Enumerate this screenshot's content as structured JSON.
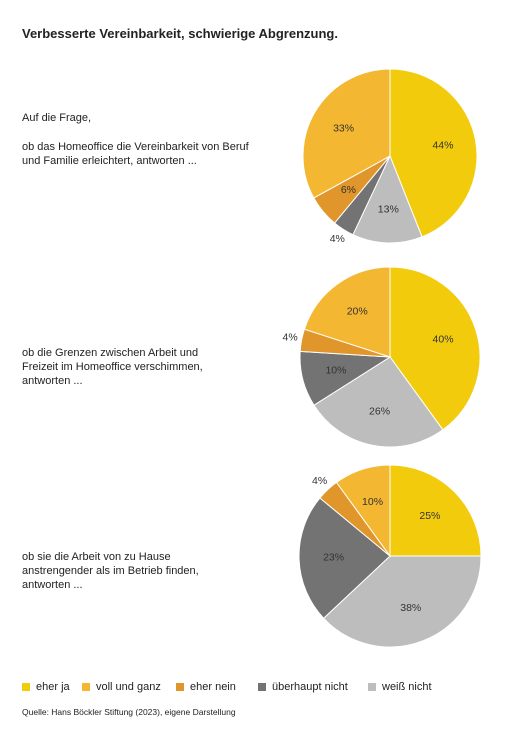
{
  "title": "Verbesserte Vereinbarkeit, schwierige Abgrenzung.",
  "intro": "Auf die Frage,",
  "source": "Quelle: Hans Böckler Stiftung (2023), eigene Darstellung",
  "chart_data": [
    {
      "type": "pie",
      "subtitle": "ob das Homeoffice die Vereinbarkeit von Beruf und Familie erleichtert, antworten ...",
      "categories": [
        "eher ja",
        "voll und ganz",
        "eher nein",
        "überhaupt nicht",
        "weiß nicht"
      ],
      "colors": [
        "#f2cc0c",
        "#f4b731",
        "#e0962a",
        "#737373",
        "#bdbdbd"
      ],
      "values": [
        44,
        33,
        6,
        4,
        13
      ],
      "value_labels": [
        "44%",
        "33%",
        "6%",
        "4%",
        "13%"
      ]
    },
    {
      "type": "pie",
      "subtitle": "ob die Grenzen zwischen Arbeit und Freizeit im Homeoffice verschimmen, antworten ...",
      "categories": [
        "eher ja",
        "voll und ganz",
        "eher nein",
        "überhaupt nicht",
        "weiß nicht"
      ],
      "colors": [
        "#f2cc0c",
        "#f4b731",
        "#e0962a",
        "#737373",
        "#bdbdbd"
      ],
      "values": [
        40,
        20,
        4,
        10,
        26
      ],
      "value_labels": [
        "40%",
        "20%",
        "4%",
        "10%",
        "26%"
      ]
    },
    {
      "type": "pie",
      "subtitle": "ob sie die Arbeit von zu Hause anstrengender als im Betrieb finden, antworten ...",
      "categories": [
        "eher ja",
        "voll und ganz",
        "eher nein",
        "überhaupt nicht",
        "weiß nicht"
      ],
      "colors": [
        "#f2cc0c",
        "#f4b731",
        "#e0962a",
        "#737373",
        "#bdbdbd"
      ],
      "values": [
        25,
        10,
        4,
        23,
        38
      ],
      "value_labels": [
        "25%",
        "10%",
        "4%",
        "23%",
        "38%"
      ]
    }
  ]
}
